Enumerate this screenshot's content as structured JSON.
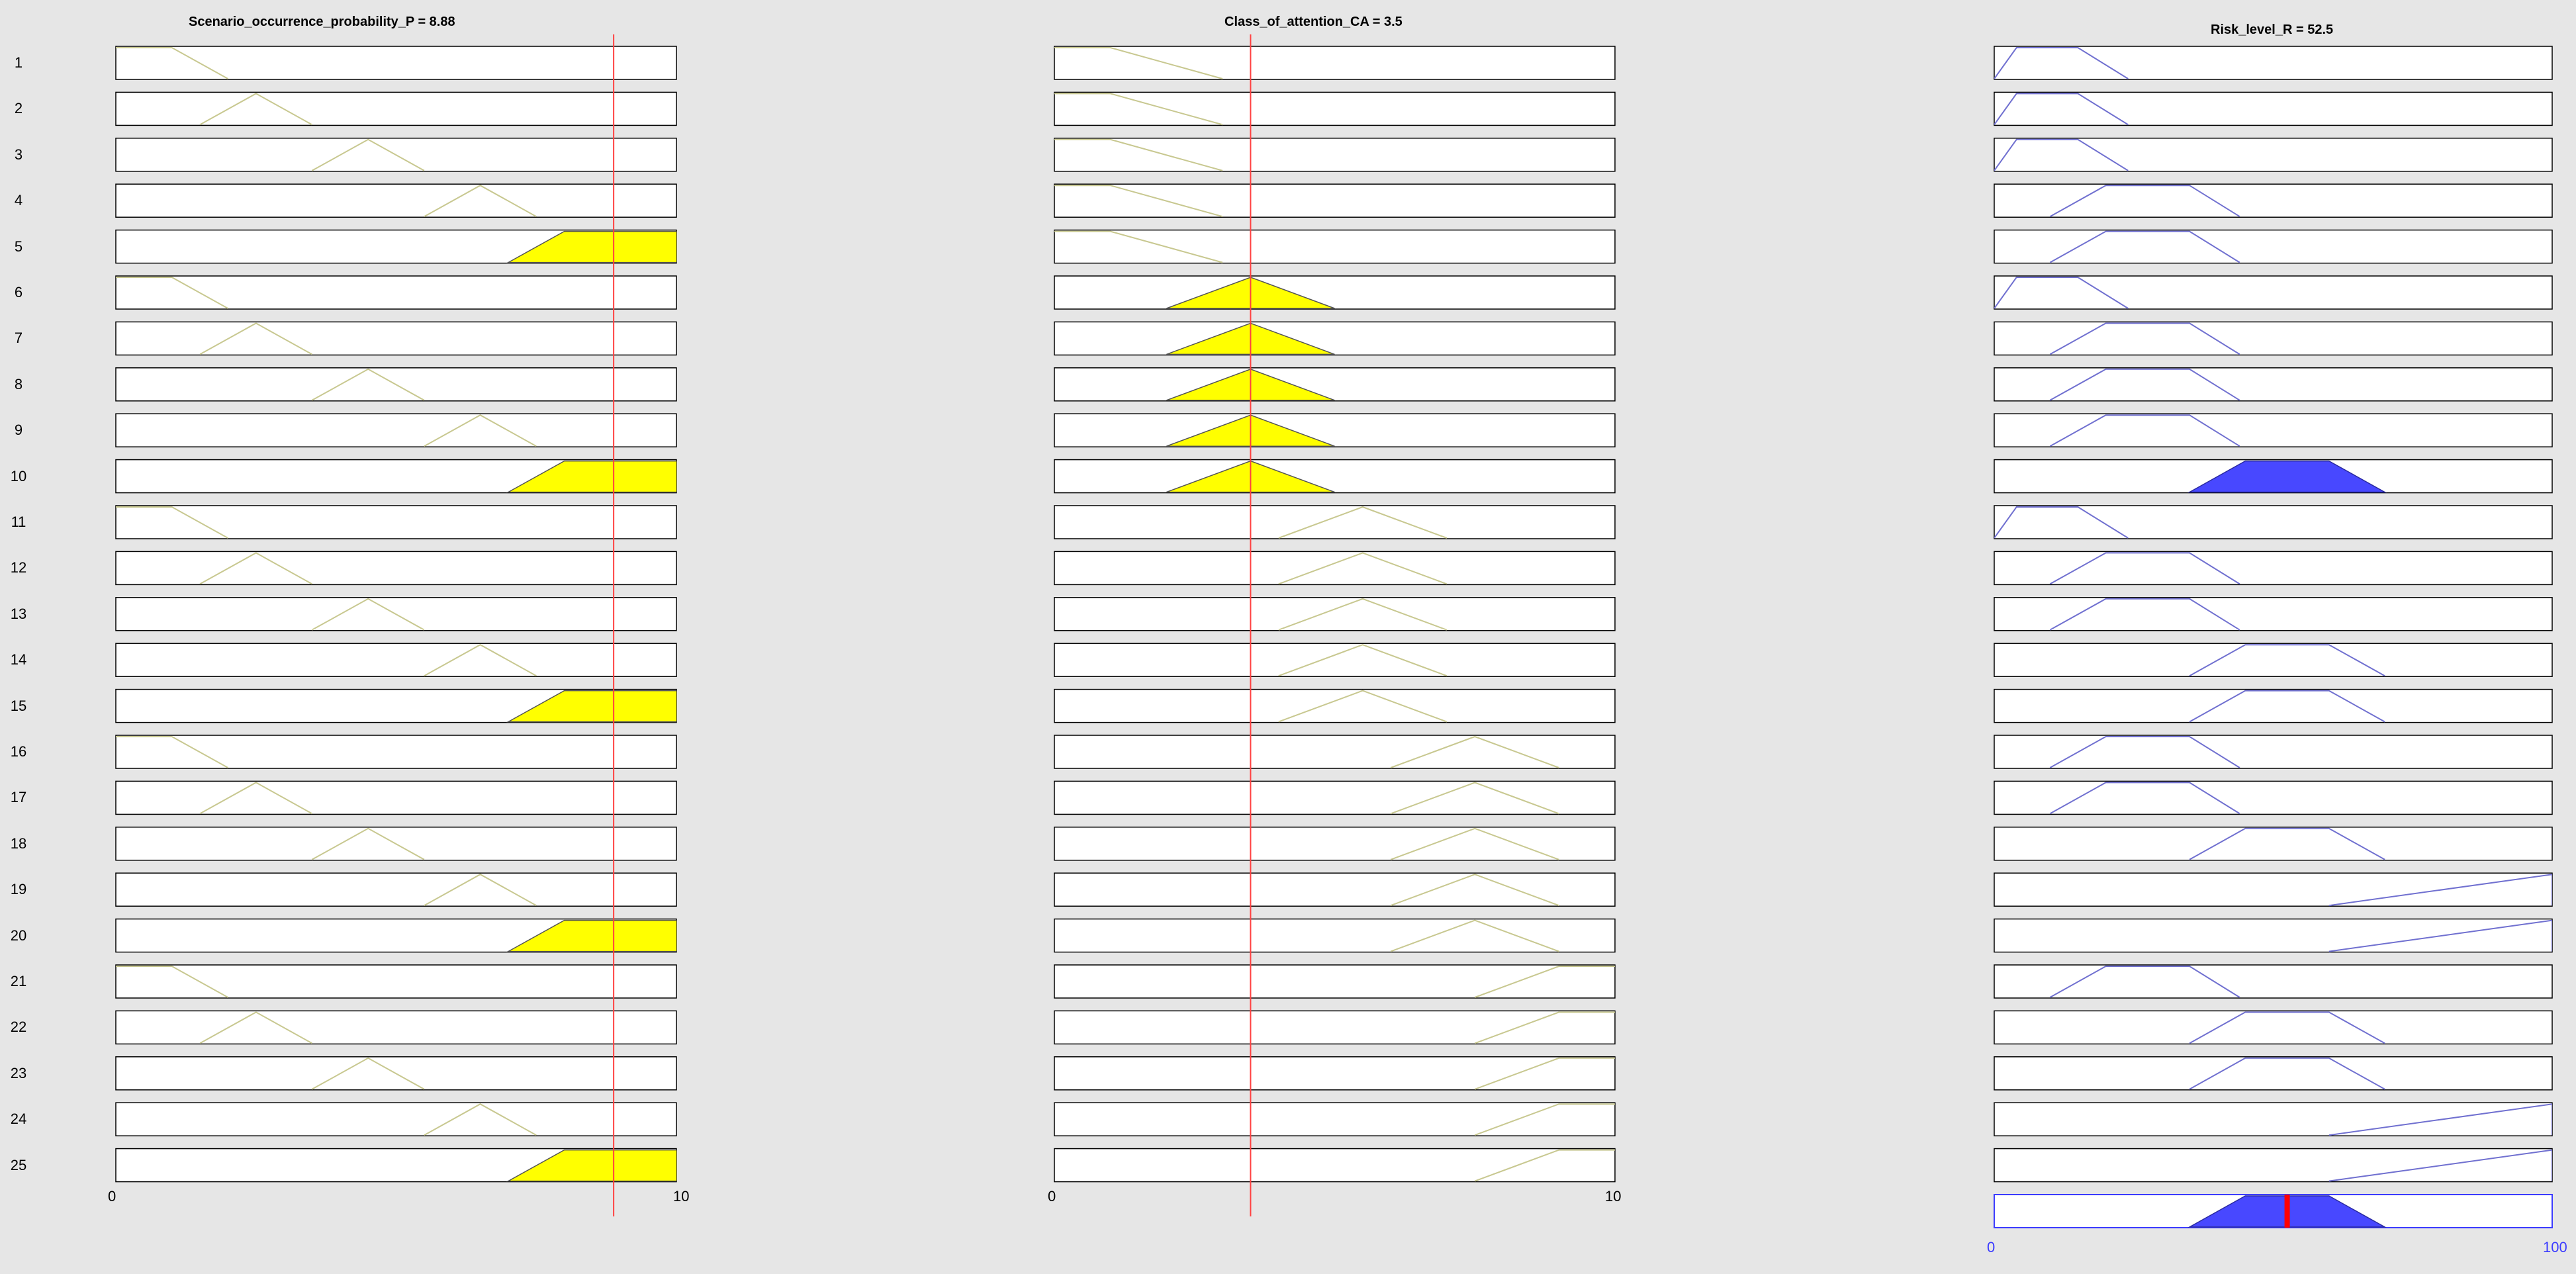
{
  "window": {
    "background": "#e6e6e6"
  },
  "colors": {
    "input_mf_line": "#c8c890",
    "input_fill": "#ffff00",
    "output_mf_line": "#7070d0",
    "output_fill": "#4848ff",
    "input_indicator": "#ff4040",
    "output_indicator": "#ff0000",
    "output_axis_text": "#3b3bff"
  },
  "inputs": [
    {
      "name": "Scenario_occurrence_probability_P",
      "title": "Scenario_occurrence_probability_P = 8.88",
      "value": 8.88,
      "range": [
        0,
        10
      ],
      "ticks": [
        "0",
        "10"
      ],
      "mfs": {
        "vl": [
          -1,
          0,
          1,
          2
        ],
        "l": [
          1.5,
          2.5,
          3.5
        ],
        "m": [
          3.5,
          4.5,
          5.5
        ],
        "h": [
          5.5,
          6.5,
          7.5
        ],
        "vh": [
          7,
          8,
          10,
          11
        ]
      },
      "rules": [
        "vl",
        "l",
        "m",
        "h",
        "vh",
        "vl",
        "l",
        "m",
        "h",
        "vh",
        "vl",
        "l",
        "m",
        "h",
        "vh",
        "vl",
        "l",
        "m",
        "h",
        "vh",
        "vl",
        "l",
        "m",
        "h",
        "vh"
      ],
      "active": [
        5,
        10,
        15,
        20,
        25
      ]
    },
    {
      "name": "Class_of_attention_CA",
      "title": "Class_of_attention_CA = 3.5",
      "value": 3.5,
      "range": [
        0,
        10
      ],
      "ticks": [
        "0",
        "10"
      ],
      "mfs": {
        "c1": [
          -1,
          0,
          1,
          3
        ],
        "c2": [
          2,
          3.5,
          5
        ],
        "c3": [
          4,
          5.5,
          7
        ],
        "c4": [
          6,
          7.5,
          9
        ],
        "c5": [
          7.5,
          9,
          10,
          11
        ]
      },
      "rules": [
        "c1",
        "c1",
        "c1",
        "c1",
        "c1",
        "c2",
        "c2",
        "c2",
        "c2",
        "c2",
        "c3",
        "c3",
        "c3",
        "c3",
        "c3",
        "c4",
        "c4",
        "c4",
        "c4",
        "c4",
        "c5",
        "c5",
        "c5",
        "c5",
        "c5"
      ],
      "active": [
        6,
        7,
        8,
        9,
        10
      ]
    }
  ],
  "output": {
    "name": "Risk_level_R",
    "title": "Risk_level_R = 52.5",
    "value": 52.5,
    "range": [
      0,
      100
    ],
    "ticks": [
      "0",
      "100"
    ],
    "mfs": {
      "low": [
        0,
        4,
        15,
        24
      ],
      "med": [
        10,
        20,
        35,
        44
      ],
      "high": [
        35,
        45,
        60,
        70
      ],
      "vhigh": [
        60,
        100,
        100,
        100
      ]
    },
    "rules": [
      "low",
      "low",
      "low",
      "med",
      "med",
      "low",
      "med",
      "med",
      "med",
      "high",
      "low",
      "med",
      "med",
      "high",
      "high",
      "med",
      "med",
      "high",
      "vhigh",
      "vhigh",
      "med",
      "high",
      "high",
      "vhigh",
      "vhigh"
    ],
    "active": [
      10
    ],
    "aggregate": [
      35,
      45,
      60,
      70
    ]
  },
  "row_labels": [
    "1",
    "2",
    "3",
    "4",
    "5",
    "6",
    "7",
    "8",
    "9",
    "10",
    "11",
    "12",
    "13",
    "14",
    "15",
    "16",
    "17",
    "18",
    "19",
    "20",
    "21",
    "22",
    "23",
    "24",
    "25"
  ]
}
